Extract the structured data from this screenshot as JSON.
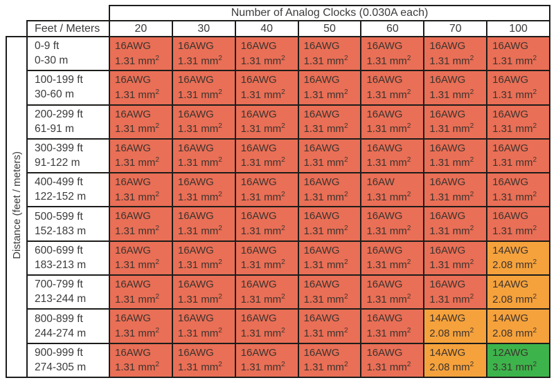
{
  "palette": {
    "red": "#e96f56",
    "orange": "#f5a23c",
    "green": "#3db44b",
    "border": "#1c1c1a",
    "text": "#3a3a3a"
  },
  "table": {
    "title": "Number of Analog Clocks (0.030A each)",
    "corner_label": "Feet / Meters",
    "side_label": "Distance (feet / meters)",
    "columns": [
      "20",
      "30",
      "40",
      "50",
      "60",
      "70",
      "100"
    ],
    "rows": [
      {
        "feet": "0-9 ft",
        "meters": "0-30 m",
        "cells": [
          {
            "gauge": "16AWG",
            "area": "1.31 mm",
            "exp": "2",
            "color": "red"
          },
          {
            "gauge": "16AWG",
            "area": "1.31 mm",
            "exp": "2",
            "color": "red"
          },
          {
            "gauge": "16AWG",
            "area": "1.31 mm",
            "exp": "2",
            "color": "red"
          },
          {
            "gauge": "16AWG",
            "area": "1.31 mm",
            "exp": "2",
            "color": "red"
          },
          {
            "gauge": "16AWG",
            "area": "1.31 mm",
            "exp": "2",
            "color": "red"
          },
          {
            "gauge": "16AWG",
            "area": "1.31 mm",
            "exp": "2",
            "color": "red"
          },
          {
            "gauge": "16AWG",
            "area": "1.31 mm",
            "exp": "2",
            "color": "red"
          }
        ]
      },
      {
        "feet": "100-199 ft",
        "meters": "30-60 m",
        "cells": [
          {
            "gauge": "16AWG",
            "area": "1.31 mm",
            "exp": "2",
            "color": "red"
          },
          {
            "gauge": "16AWG",
            "area": "1.31 mm",
            "exp": "2",
            "color": "red"
          },
          {
            "gauge": "16AWG",
            "area": "1.31 mm",
            "exp": "2",
            "color": "red"
          },
          {
            "gauge": "16AWG",
            "area": "1.31 mm",
            "exp": "2",
            "color": "red"
          },
          {
            "gauge": "16AWG",
            "area": "1.31 mm",
            "exp": "2",
            "color": "red"
          },
          {
            "gauge": "16AWG",
            "area": "1.31 mm",
            "exp": "2",
            "color": "red"
          },
          {
            "gauge": "16AWG",
            "area": "1.31 mm",
            "exp": "2",
            "color": "red"
          }
        ]
      },
      {
        "feet": "200-299 ft",
        "meters": "61-91 m",
        "cells": [
          {
            "gauge": "16AWG",
            "area": "1.31 mm",
            "exp": "2",
            "color": "red"
          },
          {
            "gauge": "16AWG",
            "area": "1.31 mm",
            "exp": "2",
            "color": "red"
          },
          {
            "gauge": "16AWG",
            "area": "1.31 mm",
            "exp": "2",
            "color": "red"
          },
          {
            "gauge": "16AWG",
            "area": "1.31 mm",
            "exp": "2",
            "color": "red"
          },
          {
            "gauge": "16AWG",
            "area": "1.31 mm",
            "exp": "2",
            "color": "red"
          },
          {
            "gauge": "16AWG",
            "area": "1.31 mm",
            "exp": "2",
            "color": "red"
          },
          {
            "gauge": "16AWG",
            "area": "1.31 mm",
            "exp": "2",
            "color": "red"
          }
        ]
      },
      {
        "feet": "300-399 ft",
        "meters": "91-122 m",
        "cells": [
          {
            "gauge": "16AWG",
            "area": "1.31 mm",
            "exp": "2",
            "color": "red"
          },
          {
            "gauge": "16AWG",
            "area": "1.31 mm",
            "exp": "2",
            "color": "red"
          },
          {
            "gauge": "16AWG",
            "area": "1.31 mm",
            "exp": "2",
            "color": "red"
          },
          {
            "gauge": "16AWG",
            "area": "1.31 mm",
            "exp": "2",
            "color": "red"
          },
          {
            "gauge": "16AWG",
            "area": "1.31 mm",
            "exp": "2",
            "color": "red"
          },
          {
            "gauge": "16AWG",
            "area": "1.31 mm",
            "exp": "2",
            "color": "red"
          },
          {
            "gauge": "16AWG",
            "area": "1.31 mm",
            "exp": "2",
            "color": "red"
          }
        ]
      },
      {
        "feet": "400-499 ft",
        "meters": "122-152 m",
        "cells": [
          {
            "gauge": "16AWG",
            "area": "1.31 mm",
            "exp": "2",
            "color": "red"
          },
          {
            "gauge": "16AWG",
            "area": "1.31 mm",
            "exp": "2",
            "color": "red"
          },
          {
            "gauge": "16AWG",
            "area": "1.31 mm",
            "exp": "2",
            "color": "red"
          },
          {
            "gauge": "16AWG",
            "area": "1.31 mm",
            "exp": "2",
            "color": "red"
          },
          {
            "gauge": "16AW",
            "area": "1.31 mm",
            "exp": "2",
            "color": "red"
          },
          {
            "gauge": "16AWG",
            "area": "1.31 mm",
            "exp": "2",
            "color": "red"
          },
          {
            "gauge": "16AWG",
            "area": "1.31 mm",
            "exp": "2",
            "color": "red"
          }
        ]
      },
      {
        "feet": "500-599 ft",
        "meters": "152-183 m",
        "cells": [
          {
            "gauge": "16AWG",
            "area": "1.31 mm",
            "exp": "2",
            "color": "red"
          },
          {
            "gauge": "16AWG",
            "area": "1.31 mm",
            "exp": "2",
            "color": "red"
          },
          {
            "gauge": "16AWG",
            "area": "1.31 mm",
            "exp": "2",
            "color": "red"
          },
          {
            "gauge": "16AWG",
            "area": "1.31 mm",
            "exp": "2",
            "color": "red"
          },
          {
            "gauge": "16AWG",
            "area": "1.31 mm",
            "exp": "2",
            "color": "red"
          },
          {
            "gauge": "16AWG",
            "area": "1.31 mm",
            "exp": "2",
            "color": "red"
          },
          {
            "gauge": "16AWG",
            "area": "1.31 mm",
            "exp": "2",
            "color": "red"
          }
        ]
      },
      {
        "feet": "600-699 ft",
        "meters": "183-213 m",
        "cells": [
          {
            "gauge": "16AWG",
            "area": "1.31 mm",
            "exp": "2",
            "color": "red"
          },
          {
            "gauge": "16AWG",
            "area": "1.31 mm",
            "exp": "2",
            "color": "red"
          },
          {
            "gauge": "16AWG",
            "area": "1.31 mm",
            "exp": "2",
            "color": "red"
          },
          {
            "gauge": "16AWG",
            "area": "1.31 mm",
            "exp": "2",
            "color": "red"
          },
          {
            "gauge": "16AWG",
            "area": "1.31 mm",
            "exp": "2",
            "color": "red"
          },
          {
            "gauge": "16AWG",
            "area": "1.31 mm",
            "exp": "2",
            "color": "red"
          },
          {
            "gauge": "14AWG",
            "area": "2.08 mm",
            "exp": "2",
            "color": "orange"
          }
        ]
      },
      {
        "feet": "700-799 ft",
        "meters": "213-244 m",
        "cells": [
          {
            "gauge": "16AWG",
            "area": "1.31 mm",
            "exp": "2",
            "color": "red"
          },
          {
            "gauge": "16AWG",
            "area": "1.31 mm",
            "exp": "2",
            "color": "red"
          },
          {
            "gauge": "16AWG",
            "area": "1.31 mm",
            "exp": "2",
            "color": "red"
          },
          {
            "gauge": "16AWG",
            "area": "1.31 mm",
            "exp": "2",
            "color": "red"
          },
          {
            "gauge": "16AWG",
            "area": "1.31 mm",
            "exp": "2",
            "color": "red"
          },
          {
            "gauge": "16AWG",
            "area": "1.31 mm",
            "exp": "2",
            "color": "red"
          },
          {
            "gauge": "14AWG",
            "area": "2.08 mm",
            "exp": "2",
            "color": "orange"
          }
        ]
      },
      {
        "feet": "800-899 ft",
        "meters": "244-274 m",
        "cells": [
          {
            "gauge": "16AWG",
            "area": "1.31 mm",
            "exp": "2",
            "color": "red"
          },
          {
            "gauge": "16AWG",
            "area": "1.31 mm",
            "exp": "2",
            "color": "red"
          },
          {
            "gauge": "16AWG",
            "area": "1.31 mm",
            "exp": "2",
            "color": "red"
          },
          {
            "gauge": "16AWG",
            "area": "1.31 mm",
            "exp": "2",
            "color": "red"
          },
          {
            "gauge": "16AWG",
            "area": "1.31 mm",
            "exp": "2",
            "color": "red"
          },
          {
            "gauge": "14AWG",
            "area": "2.08 mm",
            "exp": "2",
            "color": "orange"
          },
          {
            "gauge": "14AWG",
            "area": "2.08 mm",
            "exp": "2",
            "color": "orange"
          }
        ]
      },
      {
        "feet": "900-999 ft",
        "meters": "274-305 m",
        "cells": [
          {
            "gauge": "16AWG",
            "area": "1.31 mm",
            "exp": "2",
            "color": "red"
          },
          {
            "gauge": "16AWG",
            "area": "1.31 mm",
            "exp": "2",
            "color": "red"
          },
          {
            "gauge": "16AWG",
            "area": "1.31 mm",
            "exp": "2",
            "color": "red"
          },
          {
            "gauge": "16AWG",
            "area": "1.31 mm",
            "exp": "2",
            "color": "red"
          },
          {
            "gauge": "16AWG",
            "area": "1.31 mm",
            "exp": "2",
            "color": "red"
          },
          {
            "gauge": "14AWG",
            "area": "2.08 mm",
            "exp": "2",
            "color": "orange"
          },
          {
            "gauge": "12AWG",
            "area": "3.31 mm",
            "exp": "2",
            "color": "green"
          }
        ]
      }
    ]
  }
}
